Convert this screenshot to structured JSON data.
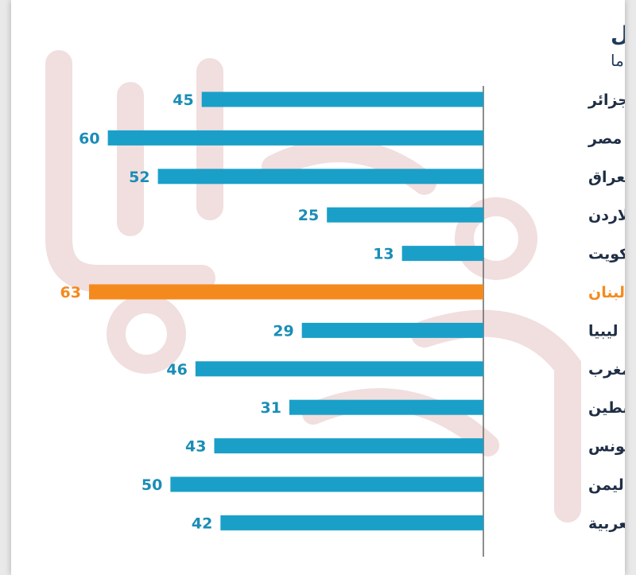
{
  "chart_data": {
    "type": "bar",
    "orientation": "horizontal",
    "title": "دفع رشوة مقابل الحصول على خدمات تعليم أفضل",
    "subtitle": "(%) من يقولون ضرورية للغاية أو ضرورية إلى حد ما",
    "categories": [
      "الجزائر",
      "مصر",
      "العراق",
      "الاردن",
      "الكويت",
      "لبنان",
      "ليبيا",
      "المغرب",
      "فلسطين",
      "تونس",
      "اليمن",
      "الدول العربية"
    ],
    "values": [
      45,
      60,
      52,
      25,
      13,
      63,
      29,
      46,
      31,
      43,
      50,
      42
    ],
    "highlight_category": "لبنان",
    "xlim": [
      0,
      63
    ],
    "xlabel": "",
    "ylabel": "",
    "grid": false,
    "legend": "none"
  },
  "colors": {
    "bar": "#1aa0c8",
    "highlight_bar": "#f48a1e",
    "value_text": "#1a8db6",
    "highlight_text": "#f48a1e",
    "title": "#1f3a5a",
    "category_text": "#1f2e45",
    "axis": "#666666",
    "watermark": "#f1dede"
  }
}
